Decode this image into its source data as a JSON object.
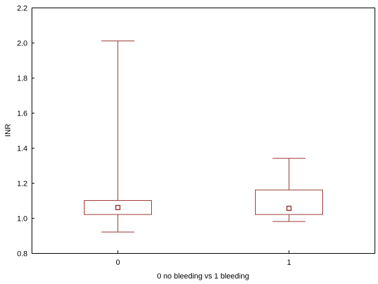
{
  "chart_data": {
    "type": "box",
    "title": "",
    "xlabel": "0 no bleeding vs 1 bleeding",
    "ylabel": "INR",
    "categories": [
      "0",
      "1"
    ],
    "ylim": [
      0.8,
      2.2
    ],
    "yticks": [
      "0.8",
      "1.0",
      "1.2",
      "1.4",
      "1.6",
      "1.8",
      "2.0",
      "2.2"
    ],
    "boxes": [
      {
        "category": "0",
        "min": 0.92,
        "q1": 1.02,
        "median": 1.06,
        "q3": 1.1,
        "max": 2.01
      },
      {
        "category": "1",
        "min": 0.98,
        "q1": 1.02,
        "median": 1.055,
        "q3": 1.16,
        "max": 1.34
      }
    ],
    "grid": false,
    "legend": "none"
  },
  "colors": {
    "box": "#9a3a36",
    "axis": "#000000"
  }
}
